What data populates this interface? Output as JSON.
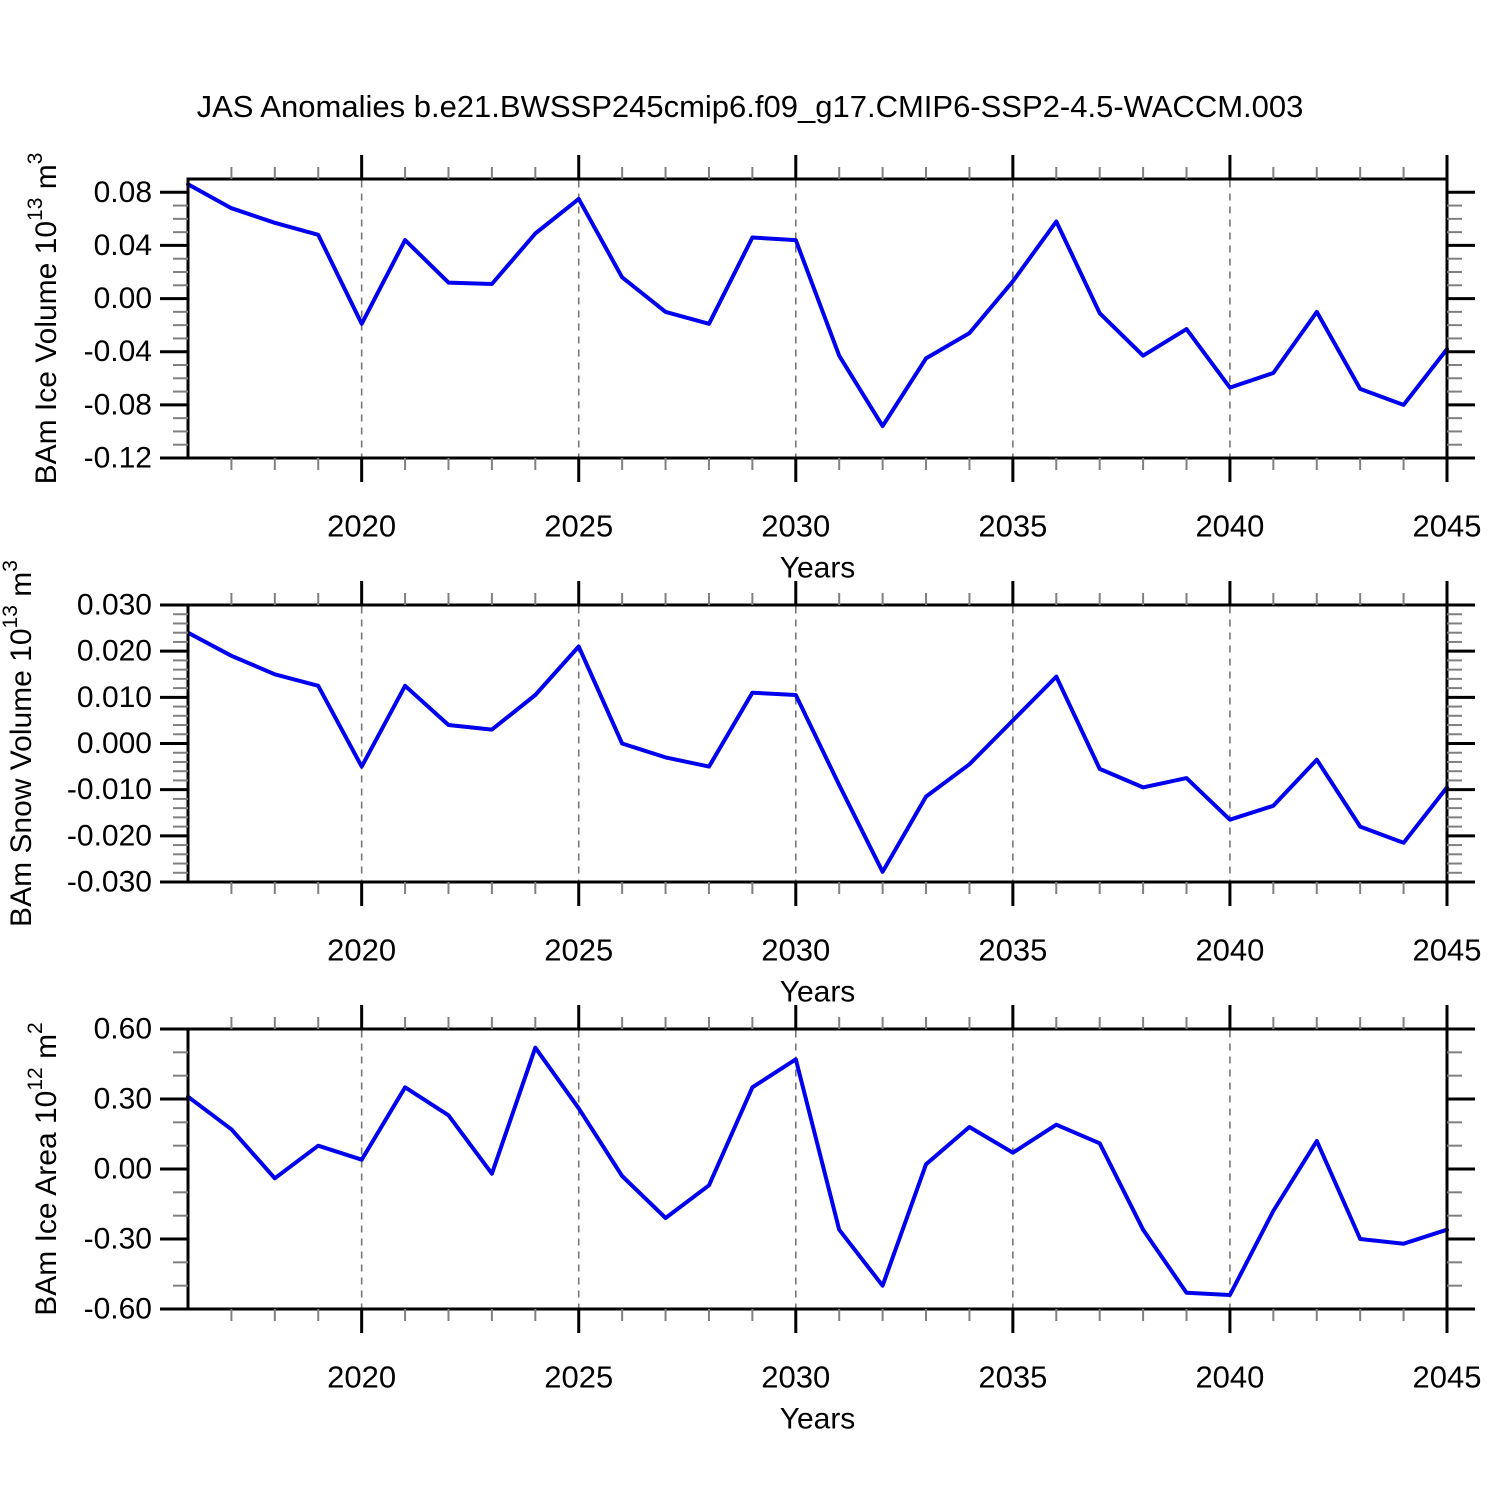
{
  "title": "JAS Anomalies b.e21.BWSSP245cmip6.f09_g17.CMIP6-SSP2-4.5-WACCM.003",
  "xlabel": "Years",
  "colors": {
    "line": "#0000ee",
    "grid": "#777777",
    "axis": "#000000",
    "minor_tick": "#808080",
    "text": "#000000"
  },
  "chart_data": [
    {
      "type": "line",
      "name": "ice-volume",
      "ylabel_plain": "BAm Ice Volume 10^13 m^3",
      "ylabel_parts": [
        {
          "t": "BAm Ice Volume 10"
        },
        {
          "t": "13",
          "sup": true
        },
        {
          "t": " m"
        },
        {
          "t": "3",
          "sup": true
        }
      ],
      "xlabel": "Years",
      "x": [
        2016,
        2017,
        2018,
        2019,
        2020,
        2021,
        2022,
        2023,
        2024,
        2025,
        2026,
        2027,
        2028,
        2029,
        2030,
        2031,
        2032,
        2033,
        2034,
        2035,
        2036,
        2037,
        2038,
        2039,
        2040,
        2041,
        2042,
        2043,
        2044,
        2045
      ],
      "values": [
        0.086,
        0.068,
        0.057,
        0.048,
        -0.019,
        0.044,
        0.012,
        0.011,
        0.049,
        0.075,
        0.016,
        -0.01,
        -0.019,
        0.046,
        0.044,
        -0.043,
        -0.096,
        -0.045,
        -0.026,
        0.013,
        0.058,
        -0.011,
        -0.043,
        -0.023,
        -0.067,
        -0.056,
        -0.01,
        -0.068,
        -0.08,
        -0.038
      ],
      "ylim": [
        -0.12,
        0.09
      ],
      "yticks": [
        {
          "v": 0.08,
          "label": "0.08"
        },
        {
          "v": 0.04,
          "label": "0.04"
        },
        {
          "v": 0.0,
          "label": "0.00"
        },
        {
          "v": -0.04,
          "label": "-0.04"
        },
        {
          "v": -0.08,
          "label": "-0.08"
        },
        {
          "v": -0.12,
          "label": "-0.12"
        }
      ],
      "y_minor_step": 0.01,
      "xticks": [
        {
          "v": 2020,
          "label": "2020"
        },
        {
          "v": 2025,
          "label": "2025"
        },
        {
          "v": 2030,
          "label": "2030"
        },
        {
          "v": 2035,
          "label": "2035"
        },
        {
          "v": 2040,
          "label": "2040"
        },
        {
          "v": 2045,
          "label": "2045"
        }
      ],
      "gridlines_x": [
        2020,
        2025,
        2030,
        2035,
        2040
      ]
    },
    {
      "type": "line",
      "name": "snow-volume",
      "ylabel_plain": "BAm Snow Volume 10^13 m^3",
      "ylabel_parts": [
        {
          "t": "BAm Snow Volume 10"
        },
        {
          "t": "13",
          "sup": true
        },
        {
          "t": " m"
        },
        {
          "t": "3",
          "sup": true
        }
      ],
      "xlabel": "Years",
      "x": [
        2016,
        2017,
        2018,
        2019,
        2020,
        2021,
        2022,
        2023,
        2024,
        2025,
        2026,
        2027,
        2028,
        2029,
        2030,
        2031,
        2032,
        2033,
        2034,
        2035,
        2036,
        2037,
        2038,
        2039,
        2040,
        2041,
        2042,
        2043,
        2044,
        2045
      ],
      "values": [
        0.024,
        0.019,
        0.015,
        0.0125,
        -0.005,
        0.0125,
        0.004,
        0.003,
        0.0105,
        0.021,
        0.0,
        -0.003,
        -0.005,
        0.011,
        0.0105,
        -0.009,
        -0.0278,
        -0.0115,
        -0.0045,
        0.005,
        0.0145,
        -0.0055,
        -0.0095,
        -0.0075,
        -0.0165,
        -0.0135,
        -0.0035,
        -0.018,
        -0.0215,
        -0.0095
      ],
      "ylim": [
        -0.03,
        0.03
      ],
      "yticks": [
        {
          "v": 0.03,
          "label": "0.030"
        },
        {
          "v": 0.02,
          "label": "0.020"
        },
        {
          "v": 0.01,
          "label": "0.010"
        },
        {
          "v": 0.0,
          "label": "0.000"
        },
        {
          "v": -0.01,
          "label": "-0.010"
        },
        {
          "v": -0.02,
          "label": "-0.020"
        },
        {
          "v": -0.03,
          "label": "-0.030"
        }
      ],
      "y_minor_step": 0.002,
      "xticks": [
        {
          "v": 2020,
          "label": "2020"
        },
        {
          "v": 2025,
          "label": "2025"
        },
        {
          "v": 2030,
          "label": "2030"
        },
        {
          "v": 2035,
          "label": "2035"
        },
        {
          "v": 2040,
          "label": "2040"
        },
        {
          "v": 2045,
          "label": "2045"
        }
      ],
      "gridlines_x": [
        2020,
        2025,
        2030,
        2035,
        2040
      ]
    },
    {
      "type": "line",
      "name": "ice-area",
      "ylabel_plain": "BAm Ice Area 10^12 m^2",
      "ylabel_parts": [
        {
          "t": "BAm Ice Area 10"
        },
        {
          "t": "12",
          "sup": true
        },
        {
          "t": " m"
        },
        {
          "t": "2",
          "sup": true
        }
      ],
      "xlabel": "Years",
      "x": [
        2016,
        2017,
        2018,
        2019,
        2020,
        2021,
        2022,
        2023,
        2024,
        2025,
        2026,
        2027,
        2028,
        2029,
        2030,
        2031,
        2032,
        2033,
        2034,
        2035,
        2036,
        2037,
        2038,
        2039,
        2040,
        2041,
        2042,
        2043,
        2044,
        2045
      ],
      "values": [
        0.31,
        0.17,
        -0.04,
        0.1,
        0.04,
        0.35,
        0.23,
        -0.02,
        0.52,
        0.26,
        -0.03,
        -0.21,
        -0.07,
        0.35,
        0.47,
        -0.26,
        -0.5,
        0.02,
        0.18,
        0.07,
        0.19,
        0.11,
        -0.26,
        -0.53,
        -0.54,
        -0.18,
        0.12,
        -0.3,
        -0.32,
        -0.26
      ],
      "ylim": [
        -0.6,
        0.6
      ],
      "yticks": [
        {
          "v": 0.6,
          "label": "0.60"
        },
        {
          "v": 0.3,
          "label": "0.30"
        },
        {
          "v": 0.0,
          "label": "0.00"
        },
        {
          "v": -0.3,
          "label": "-0.30"
        },
        {
          "v": -0.6,
          "label": "-0.60"
        }
      ],
      "y_minor_step": 0.1,
      "xticks": [
        {
          "v": 2020,
          "label": "2020"
        },
        {
          "v": 2025,
          "label": "2025"
        },
        {
          "v": 2030,
          "label": "2030"
        },
        {
          "v": 2035,
          "label": "2035"
        },
        {
          "v": 2040,
          "label": "2040"
        },
        {
          "v": 2045,
          "label": "2045"
        }
      ],
      "gridlines_x": [
        2020,
        2025,
        2030,
        2035,
        2040
      ]
    }
  ]
}
